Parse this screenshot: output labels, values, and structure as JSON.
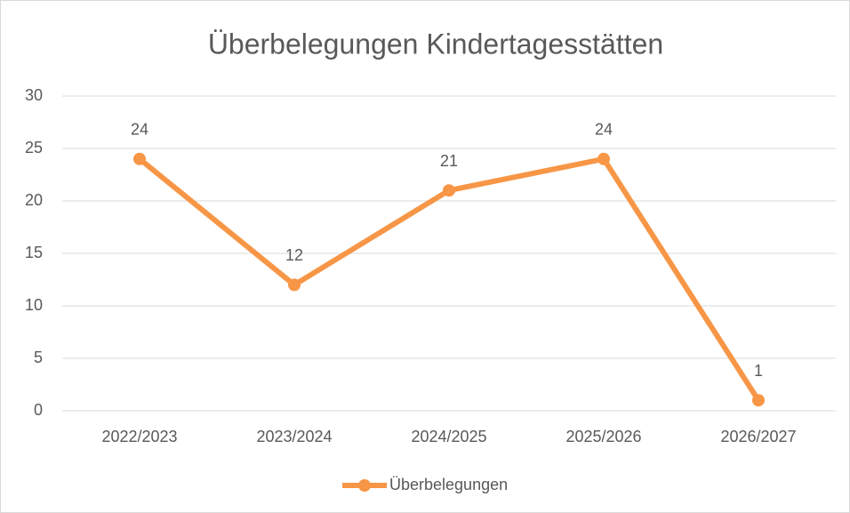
{
  "chart_data": {
    "type": "line",
    "title": "Überbelegungen Kindertagesstätten",
    "categories": [
      "2022/2023",
      "2023/2024",
      "2024/2025",
      "2025/2026",
      "2026/2027"
    ],
    "series": [
      {
        "name": "Überbelegungen",
        "color": "#f79646",
        "values": [
          24,
          12,
          21,
          24,
          1
        ]
      }
    ],
    "ylim": [
      0,
      30
    ],
    "yticks": [
      0,
      5,
      10,
      15,
      20,
      25,
      30
    ],
    "grid": true,
    "legend": "bottom",
    "data_labels": true
  }
}
